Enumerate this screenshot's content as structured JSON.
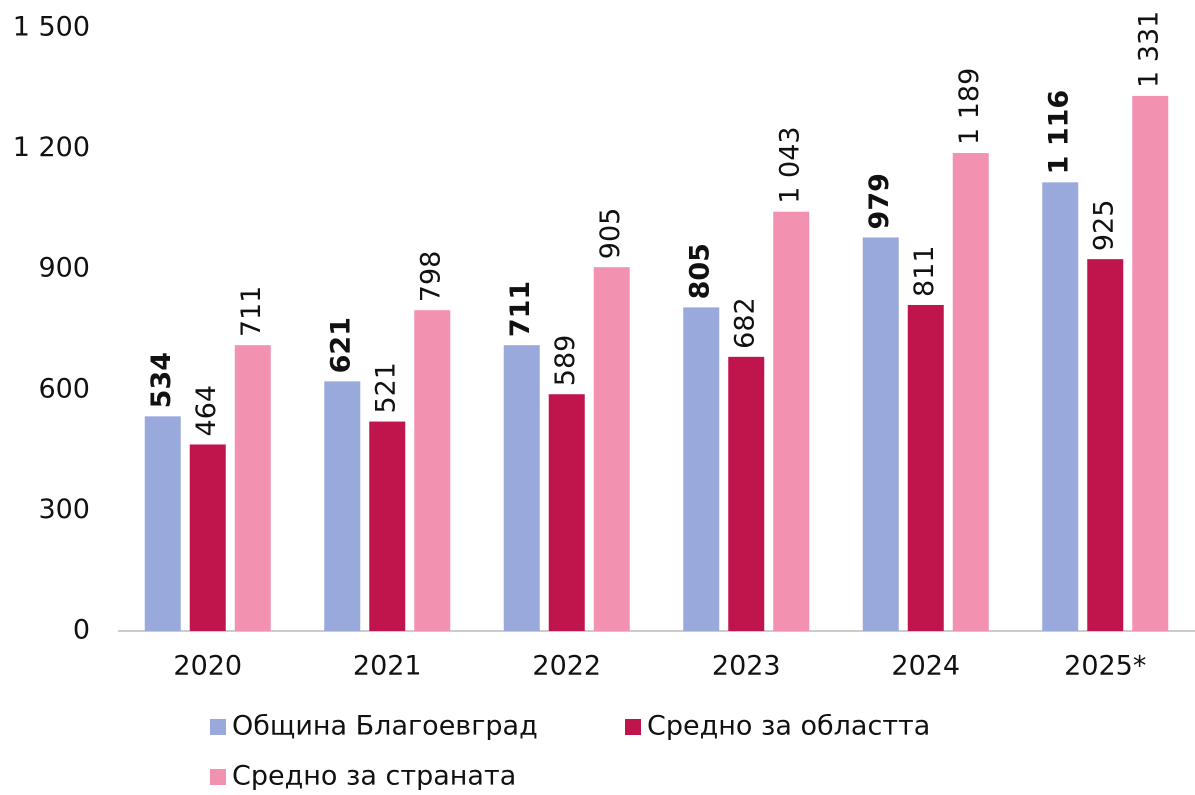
{
  "chart_data": {
    "type": "bar",
    "categories": [
      "2020",
      "2021",
      "2022",
      "2023",
      "2024",
      "2025*"
    ],
    "series": [
      {
        "name": "Община Благоевград",
        "color": "#9aa9dc",
        "values": [
          534,
          621,
          711,
          805,
          979,
          1116
        ],
        "value_labels": [
          "534",
          "621",
          "711",
          "805",
          "979",
          "1 116"
        ],
        "bold_labels": true
      },
      {
        "name": "Средно за областта",
        "color": "#c0144c",
        "values": [
          464,
          521,
          589,
          682,
          811,
          925
        ],
        "value_labels": [
          "464",
          "521",
          "589",
          "682",
          "811",
          "925"
        ]
      },
      {
        "name": "Средно за страната",
        "color": "#f391b0",
        "values": [
          711,
          798,
          905,
          1043,
          1189,
          1331
        ],
        "value_labels": [
          "711",
          "798",
          "905",
          "1 043",
          "1 189",
          "1 331"
        ]
      }
    ],
    "ylim": [
      0,
      1500
    ],
    "yticks": [
      0,
      300,
      600,
      900,
      {
        "value": 1200,
        "label": "1 200"
      },
      {
        "value": 1500,
        "label": "1 500"
      }
    ],
    "grid": false
  }
}
